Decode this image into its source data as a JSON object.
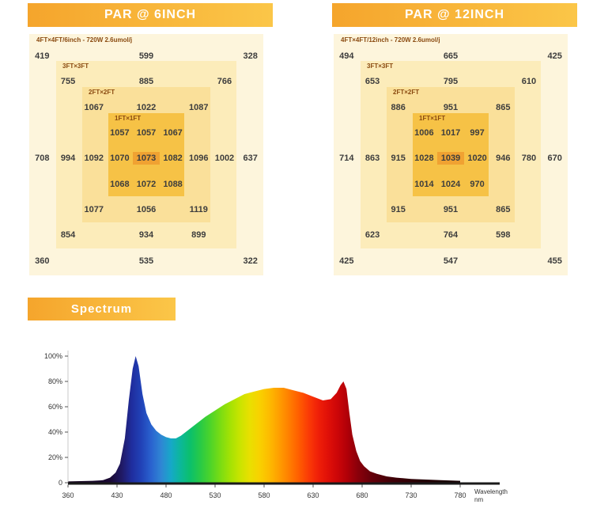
{
  "headers": {
    "par6": "PAR @ 6INCH",
    "par12": "PAR @ 12INCH",
    "spectrum": "Spectrum"
  },
  "colors": {
    "banner_from": "#f5a52c",
    "banner_to": "#fbc648",
    "ring4": "#fdf5dc",
    "ring3": "#fcecba",
    "ring2": "#fae09a",
    "ring1": "#f6c246",
    "center": "#f0a232",
    "label": "#8a4a10",
    "value": "#3d3d3d"
  },
  "chart_data": [
    {
      "type": "heatmap",
      "title": "PAR @ 6INCH",
      "subtitle": "4FT×4FT/6inch - 720W 2.6umol/j",
      "ring_labels": [
        "3FT×3FT",
        "2FT×2FT",
        "1FT×1FT"
      ],
      "grid": [
        [
          419,
          null,
          null,
          null,
          599,
          null,
          null,
          null,
          328
        ],
        [
          null,
          755,
          null,
          null,
          885,
          null,
          null,
          766,
          null
        ],
        [
          null,
          null,
          1067,
          null,
          1022,
          null,
          1087,
          null,
          null
        ],
        [
          null,
          null,
          null,
          1057,
          1057,
          1067,
          null,
          null,
          null
        ],
        [
          708,
          994,
          1092,
          1070,
          1073,
          1082,
          1096,
          1002,
          637
        ],
        [
          null,
          null,
          null,
          1068,
          1072,
          1088,
          null,
          null,
          null
        ],
        [
          null,
          null,
          1077,
          null,
          1056,
          null,
          1119,
          null,
          null
        ],
        [
          null,
          854,
          null,
          null,
          934,
          null,
          899,
          null,
          null
        ],
        [
          360,
          null,
          null,
          null,
          535,
          null,
          null,
          null,
          322
        ]
      ]
    },
    {
      "type": "heatmap",
      "title": "PAR @ 12INCH",
      "subtitle": "4FT×4FT/12inch - 720W 2.6umol/j",
      "ring_labels": [
        "3FT×3FT",
        "2FT×2FT",
        "1FT×1FT"
      ],
      "grid": [
        [
          494,
          null,
          null,
          null,
          665,
          null,
          null,
          null,
          425
        ],
        [
          null,
          653,
          null,
          null,
          795,
          null,
          null,
          610,
          null
        ],
        [
          null,
          null,
          886,
          null,
          951,
          null,
          865,
          null,
          null
        ],
        [
          null,
          null,
          null,
          1006,
          1017,
          997,
          null,
          null,
          null
        ],
        [
          714,
          863,
          915,
          1028,
          1039,
          1020,
          946,
          780,
          670
        ],
        [
          null,
          null,
          null,
          1014,
          1024,
          970,
          null,
          null,
          null
        ],
        [
          null,
          null,
          915,
          null,
          951,
          null,
          865,
          null,
          null
        ],
        [
          null,
          623,
          null,
          null,
          764,
          null,
          598,
          null,
          null
        ],
        [
          425,
          null,
          null,
          null,
          547,
          null,
          null,
          null,
          455
        ]
      ]
    },
    {
      "type": "area",
      "title": "Spectrum",
      "xlabel": "Wavelength nm",
      "ylabel": "",
      "ylim": [
        0,
        100
      ],
      "x_ticks": [
        "360",
        "430",
        "480",
        "530",
        "580",
        "630",
        "680",
        "730",
        "780"
      ],
      "y_ticks": [
        {
          "label": "100%",
          "value": 100
        },
        {
          "label": "80%",
          "value": 80
        },
        {
          "label": "60%",
          "value": 60
        },
        {
          "label": "40%",
          "value": 40
        },
        {
          "label": "20%",
          "value": 20
        },
        {
          "label": "0",
          "value": 0
        }
      ],
      "axis_note": [
        "Wavelength",
        "nm"
      ],
      "points": [
        [
          360,
          1
        ],
        [
          395,
          1.5
        ],
        [
          410,
          2
        ],
        [
          420,
          4
        ],
        [
          428,
          8
        ],
        [
          433,
          15
        ],
        [
          438,
          35
        ],
        [
          442,
          65
        ],
        [
          446,
          90
        ],
        [
          449,
          100
        ],
        [
          452,
          92
        ],
        [
          456,
          70
        ],
        [
          460,
          55
        ],
        [
          465,
          46
        ],
        [
          470,
          41
        ],
        [
          475,
          38
        ],
        [
          480,
          36
        ],
        [
          485,
          35
        ],
        [
          490,
          35
        ],
        [
          495,
          37
        ],
        [
          500,
          40
        ],
        [
          510,
          46
        ],
        [
          520,
          52
        ],
        [
          530,
          57
        ],
        [
          540,
          62
        ],
        [
          550,
          66
        ],
        [
          560,
          70
        ],
        [
          570,
          72
        ],
        [
          580,
          74
        ],
        [
          590,
          75
        ],
        [
          600,
          75
        ],
        [
          610,
          73
        ],
        [
          620,
          71
        ],
        [
          630,
          68
        ],
        [
          640,
          65
        ],
        [
          648,
          66
        ],
        [
          654,
          71
        ],
        [
          658,
          77
        ],
        [
          661,
          80
        ],
        [
          664,
          74
        ],
        [
          667,
          55
        ],
        [
          670,
          38
        ],
        [
          674,
          25
        ],
        [
          678,
          17
        ],
        [
          682,
          13
        ],
        [
          688,
          9
        ],
        [
          695,
          7
        ],
        [
          705,
          5
        ],
        [
          715,
          4
        ],
        [
          730,
          3
        ],
        [
          745,
          2.5
        ],
        [
          760,
          2
        ],
        [
          780,
          1.5
        ]
      ],
      "gradient_stops": [
        [
          360,
          "#120018"
        ],
        [
          420,
          "#1a0933"
        ],
        [
          435,
          "#201a66"
        ],
        [
          445,
          "#1f2d9e"
        ],
        [
          455,
          "#2143b8"
        ],
        [
          465,
          "#2a63cf"
        ],
        [
          475,
          "#2f86d4"
        ],
        [
          485,
          "#16a8c8"
        ],
        [
          495,
          "#0cb898"
        ],
        [
          505,
          "#0cc06a"
        ],
        [
          515,
          "#28ca46"
        ],
        [
          525,
          "#4cd42a"
        ],
        [
          535,
          "#78dc14"
        ],
        [
          545,
          "#a2e204"
        ],
        [
          555,
          "#c8e400"
        ],
        [
          565,
          "#e8e000"
        ],
        [
          575,
          "#f8d200"
        ],
        [
          585,
          "#fdbc00"
        ],
        [
          595,
          "#ff9f00"
        ],
        [
          605,
          "#ff8000"
        ],
        [
          615,
          "#ff5f00"
        ],
        [
          625,
          "#fb3c06"
        ],
        [
          635,
          "#f02008"
        ],
        [
          645,
          "#e01008"
        ],
        [
          655,
          "#cc0608"
        ],
        [
          665,
          "#b00008"
        ],
        [
          675,
          "#8c000a"
        ],
        [
          690,
          "#64000a"
        ],
        [
          710,
          "#410008"
        ],
        [
          740,
          "#250004"
        ],
        [
          780,
          "#140002"
        ]
      ]
    }
  ]
}
